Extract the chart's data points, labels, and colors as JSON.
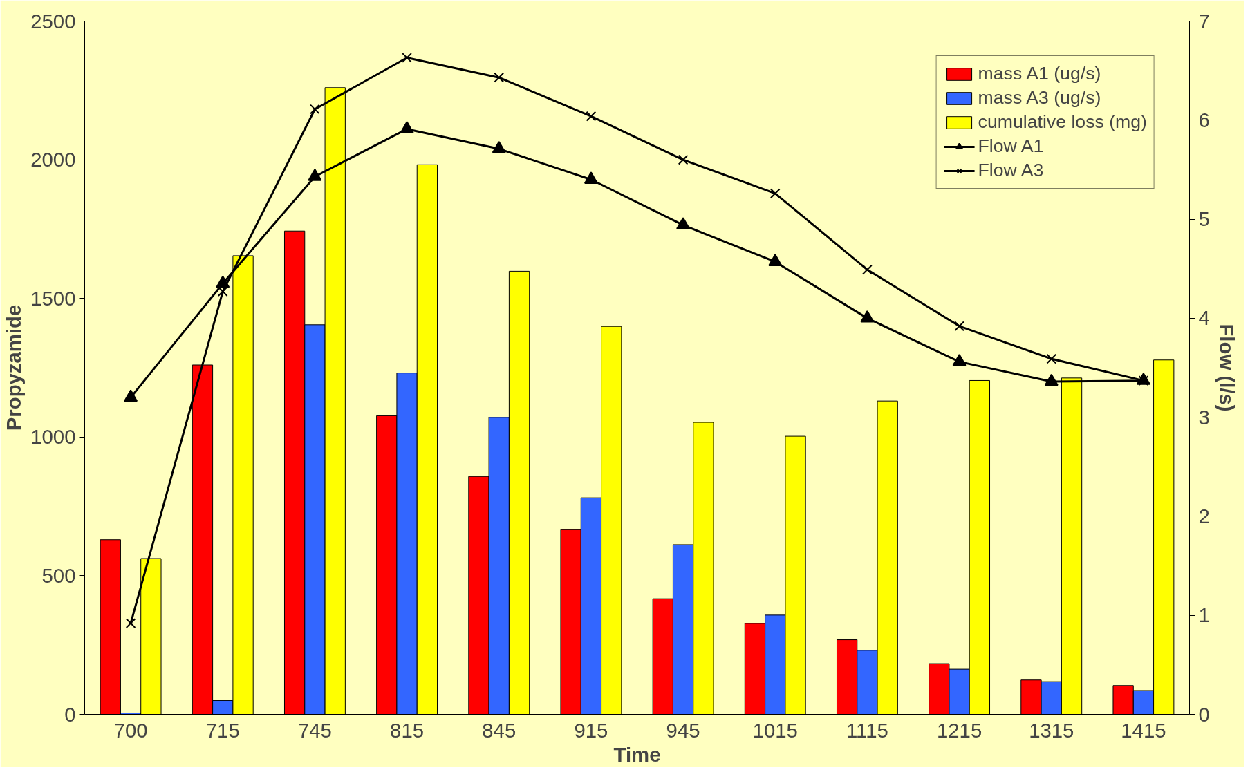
{
  "chart_data": {
    "type": "bar",
    "xlabel": "Time",
    "ylabel": "Propyzamide",
    "y2label": "Flow (l/s)",
    "categories": [
      "700",
      "715",
      "745",
      "815",
      "845",
      "915",
      "945",
      "1015",
      "1115",
      "1215",
      "1315",
      "1415"
    ],
    "series": [
      {
        "name": "mass A1 (ug/s)",
        "color": "#ff0000",
        "values": [
          630,
          1260,
          1743,
          1077,
          858,
          666,
          417,
          328,
          269,
          183,
          124,
          104
        ]
      },
      {
        "name": "mass A3 (ug/s)",
        "color": "#3366ff",
        "values": [
          5,
          50,
          1405,
          1231,
          1071,
          781,
          612,
          358,
          231,
          163,
          118,
          86
        ]
      },
      {
        "name": "cumulative loss (mg)",
        "color": "#ffff00",
        "values": [
          562,
          1654,
          2260,
          1982,
          1598,
          1399,
          1053,
          1003,
          1130,
          1204,
          1213,
          1278
        ]
      },
      {
        "name": "Flow A1",
        "type": "line",
        "axis": "y2",
        "marker": "triangle",
        "color": "#000000",
        "values": [
          3.2,
          4.35,
          5.43,
          5.91,
          5.71,
          5.4,
          4.94,
          4.57,
          4.0,
          3.56,
          3.36,
          3.37
        ]
      },
      {
        "name": "Flow A3",
        "type": "line",
        "axis": "y2",
        "marker": "cross",
        "color": "#000000",
        "values": [
          0.92,
          4.27,
          6.11,
          6.63,
          6.43,
          6.04,
          5.6,
          5.26,
          4.49,
          3.92,
          3.59,
          3.37
        ]
      }
    ],
    "ylim": [
      0,
      2500
    ],
    "yticks": [
      0,
      500,
      1000,
      1500,
      2000,
      2500
    ],
    "y2lim": [
      0,
      7
    ],
    "y2ticks": [
      0,
      1,
      2,
      3,
      4,
      5,
      6,
      7
    ],
    "legend": "top right",
    "grid": false
  }
}
